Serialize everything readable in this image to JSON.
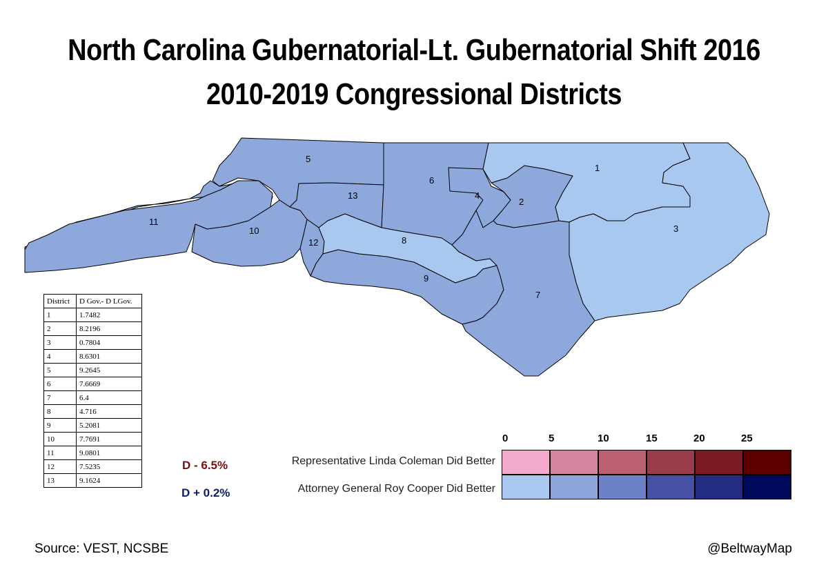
{
  "title": {
    "line1": "North Carolina Gubernatorial-Lt. Gubernatorial Shift 2016",
    "line2": "2010-2019 Congressional Districts"
  },
  "colors": {
    "light_blue": "#a9c8f0",
    "mid_blue": "#8ea8dc",
    "border": "#000000",
    "red_text": "#7b0d0d",
    "blue_text": "#0d1f6b"
  },
  "districts": [
    {
      "number": "1",
      "fill": "light_blue"
    },
    {
      "number": "2",
      "fill": "mid_blue"
    },
    {
      "number": "3",
      "fill": "light_blue"
    },
    {
      "number": "4",
      "fill": "mid_blue"
    },
    {
      "number": "5",
      "fill": "mid_blue"
    },
    {
      "number": "6",
      "fill": "mid_blue"
    },
    {
      "number": "7",
      "fill": "mid_blue"
    },
    {
      "number": "8",
      "fill": "light_blue"
    },
    {
      "number": "9",
      "fill": "mid_blue"
    },
    {
      "number": "10",
      "fill": "mid_blue"
    },
    {
      "number": "11",
      "fill": "mid_blue"
    },
    {
      "number": "12",
      "fill": "mid_blue"
    },
    {
      "number": "13",
      "fill": "mid_blue"
    }
  ],
  "table": {
    "headers": [
      "District",
      "D Gov.- D LGov."
    ],
    "rows": [
      [
        "1",
        "1.7482"
      ],
      [
        "2",
        "8.2196"
      ],
      [
        "3",
        "0.7804"
      ],
      [
        "4",
        "8.6301"
      ],
      [
        "5",
        "9.2645"
      ],
      [
        "6",
        "7.6669"
      ],
      [
        "7",
        "6.4"
      ],
      [
        "8",
        "4.716"
      ],
      [
        "9",
        "5.2081"
      ],
      [
        "10",
        "7.7691"
      ],
      [
        "11",
        "9.0801"
      ],
      [
        "12",
        "7.5235"
      ],
      [
        "13",
        "9.1624"
      ]
    ]
  },
  "statewide": {
    "lt_gov": "D - 6.5%",
    "gov": "D + 0.2%"
  },
  "legend": {
    "scale": [
      "0",
      "5",
      "10",
      "15",
      "20",
      "25"
    ],
    "coleman_label": "Representative Linda Coleman Did Better",
    "cooper_label": "Attorney General Roy Cooper Did Better",
    "red_colors": [
      "#f2a9cb",
      "#d5869f",
      "#bb5f73",
      "#9a3d4b",
      "#7a1b24",
      "#5e0000"
    ],
    "blue_colors": [
      "#a9c8f0",
      "#8ea6dc",
      "#6c82c6",
      "#4651a2",
      "#242c82",
      "#000a5a"
    ]
  },
  "footer": {
    "source": "Source: VEST, NCSBE",
    "credit": "@BeltwayMap"
  }
}
